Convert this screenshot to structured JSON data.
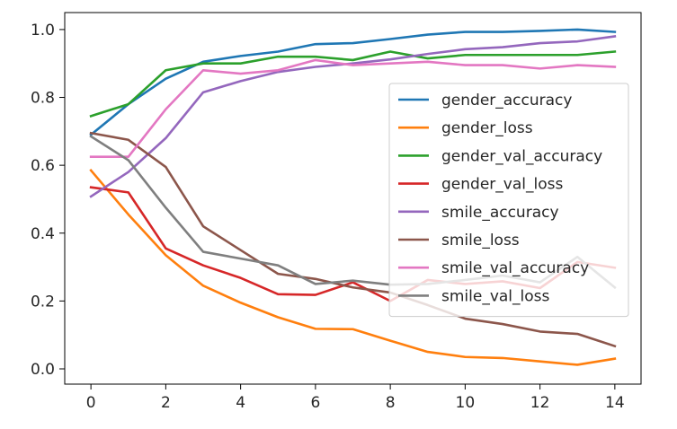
{
  "chart_data": {
    "type": "line",
    "title": "",
    "xlabel": "",
    "ylabel": "",
    "xlim": [
      -0.7,
      14.7
    ],
    "ylim": [
      -0.045,
      1.05
    ],
    "x_ticks": [
      0,
      2,
      4,
      6,
      8,
      10,
      12,
      14
    ],
    "y_ticks": [
      0.0,
      0.2,
      0.4,
      0.6,
      0.8,
      1.0
    ],
    "x_tick_labels": [
      "0",
      "2",
      "4",
      "6",
      "8",
      "10",
      "12",
      "14"
    ],
    "y_tick_labels": [
      "0.0",
      "0.2",
      "0.4",
      "0.6",
      "0.8",
      "1.0"
    ],
    "grid": false,
    "legend_position": "center-right",
    "x": [
      0,
      1,
      2,
      3,
      4,
      5,
      6,
      7,
      8,
      9,
      10,
      11,
      12,
      13,
      14
    ],
    "series": [
      {
        "name": "gender_accuracy",
        "color": "#1f77b4",
        "values": [
          0.69,
          0.78,
          0.855,
          0.905,
          0.922,
          0.935,
          0.957,
          0.96,
          0.972,
          0.985,
          0.993,
          0.993,
          0.996,
          1.0,
          0.993
        ]
      },
      {
        "name": "gender_loss",
        "color": "#ff7f0e",
        "values": [
          0.585,
          0.455,
          0.335,
          0.245,
          0.195,
          0.152,
          0.118,
          0.117,
          0.083,
          0.05,
          0.035,
          0.032,
          0.022,
          0.012,
          0.03
        ]
      },
      {
        "name": "gender_val_accuracy",
        "color": "#2ca02c",
        "values": [
          0.745,
          0.78,
          0.88,
          0.9,
          0.9,
          0.92,
          0.92,
          0.91,
          0.935,
          0.915,
          0.925,
          0.925,
          0.925,
          0.925,
          0.935
        ]
      },
      {
        "name": "gender_val_loss",
        "color": "#d62728",
        "values": [
          0.535,
          0.52,
          0.355,
          0.305,
          0.268,
          0.22,
          0.218,
          0.255,
          0.2,
          0.262,
          0.25,
          0.258,
          0.238,
          0.315,
          0.298
        ]
      },
      {
        "name": "smile_accuracy",
        "color": "#9467bd",
        "values": [
          0.508,
          0.58,
          0.68,
          0.815,
          0.848,
          0.875,
          0.89,
          0.9,
          0.912,
          0.928,
          0.942,
          0.948,
          0.96,
          0.965,
          0.98
        ]
      },
      {
        "name": "smile_loss",
        "color": "#8c564b",
        "values": [
          0.695,
          0.675,
          0.595,
          0.42,
          0.35,
          0.28,
          0.265,
          0.24,
          0.225,
          0.188,
          0.148,
          0.132,
          0.11,
          0.103,
          0.067
        ]
      },
      {
        "name": "smile_val_accuracy",
        "color": "#e377c2",
        "values": [
          0.625,
          0.625,
          0.765,
          0.88,
          0.87,
          0.88,
          0.91,
          0.895,
          0.9,
          0.905,
          0.895,
          0.895,
          0.885,
          0.895,
          0.89
        ]
      },
      {
        "name": "smile_val_loss",
        "color": "#7f7f7f",
        "values": [
          0.685,
          0.615,
          0.475,
          0.345,
          0.325,
          0.305,
          0.25,
          0.26,
          0.248,
          0.25,
          0.262,
          0.275,
          0.255,
          0.33,
          0.24
        ]
      }
    ]
  }
}
